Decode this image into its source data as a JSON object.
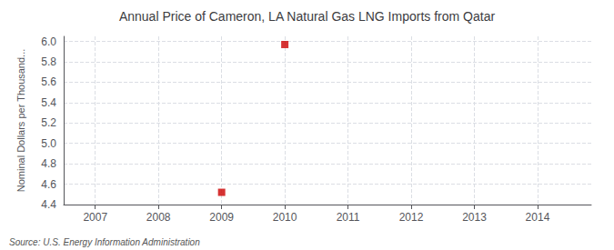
{
  "chart_data": {
    "type": "scatter",
    "title": "Annual Price of Cameron, LA Natural Gas LNG Imports from Qatar",
    "ylabel": "Nominal Dollars per Thousand...",
    "annotations": [
      "Source: U.S. Energy Information Administration"
    ],
    "x": [
      2009,
      2010
    ],
    "values": [
      4.52,
      5.97
    ],
    "color": "#cc0000",
    "marker": "square",
    "xlim": [
      2006.5,
      2014.85
    ],
    "xticks": [
      2007,
      2008,
      2009,
      2010,
      2011,
      2012,
      2013,
      2014
    ],
    "ylim": [
      4.4,
      6.05
    ],
    "yticks": [
      4.4,
      4.6,
      4.8,
      {
        "value": 5.0,
        "label": "5.0"
      },
      5.2,
      5.4,
      5.6,
      5.8,
      {
        "value": 6.0,
        "label": "6.0"
      }
    ],
    "grid": true
  }
}
